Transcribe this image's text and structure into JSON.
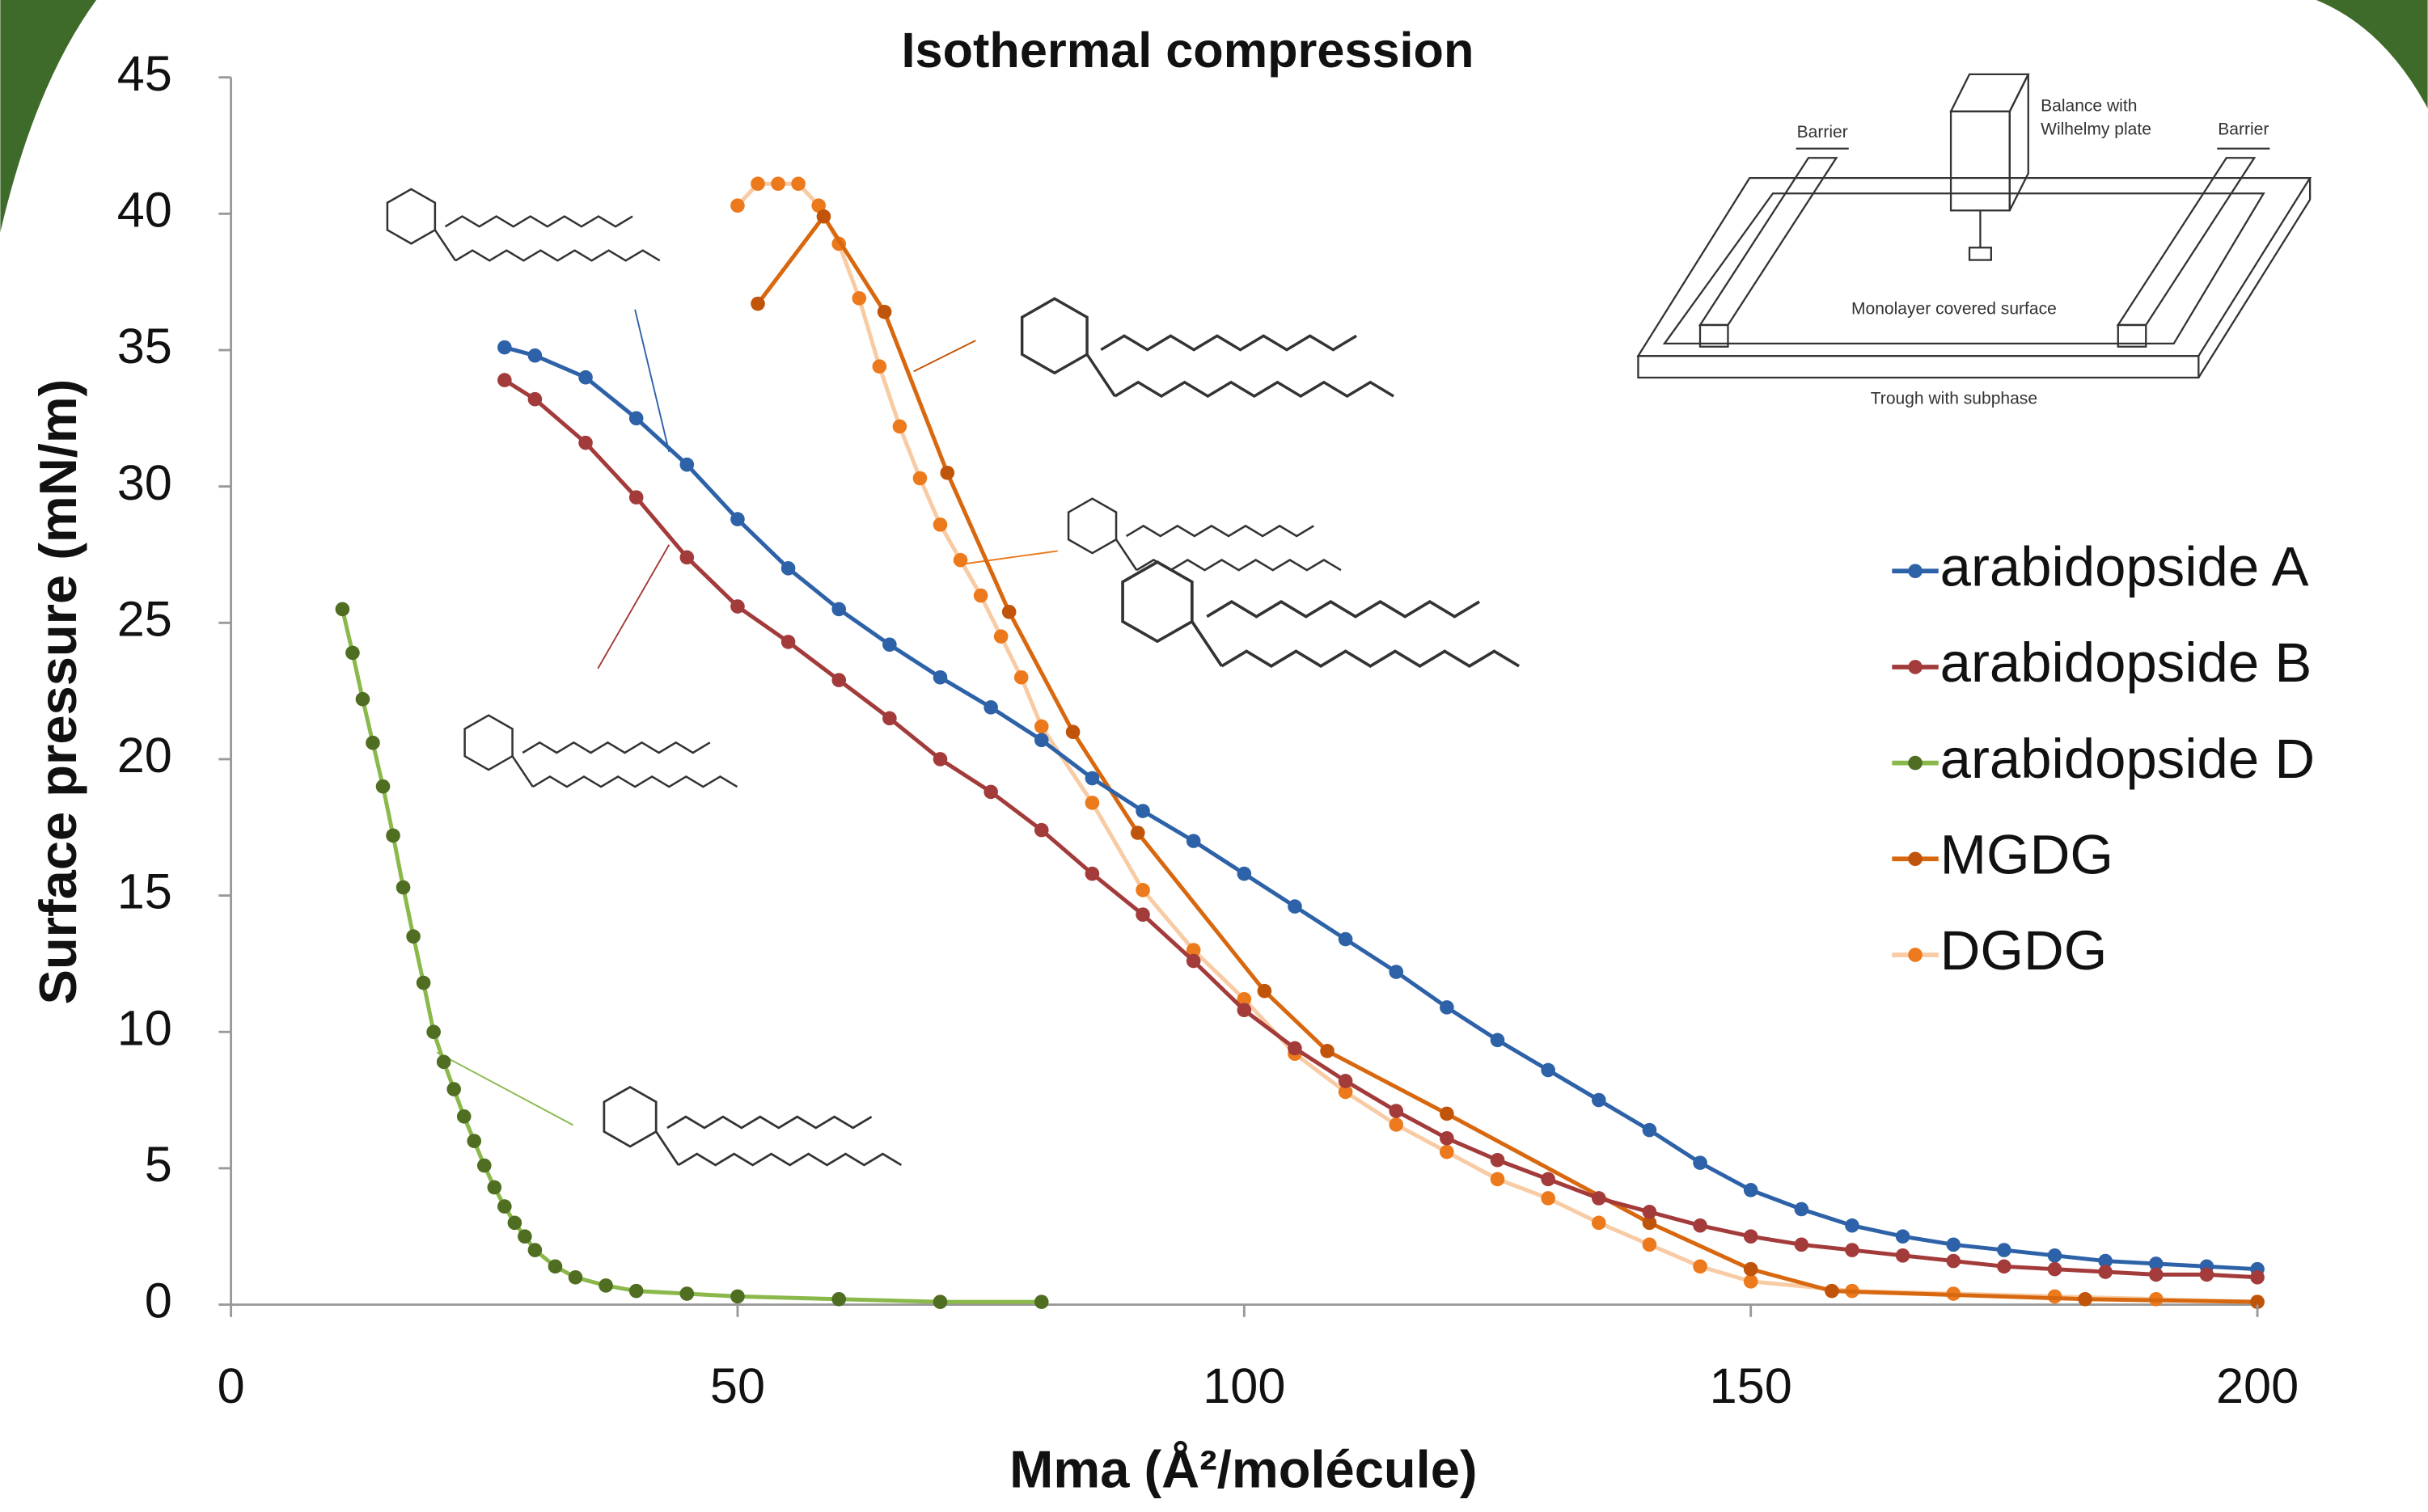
{
  "chart_data": {
    "type": "line",
    "title": "Isothermal compression",
    "x_label": "Mma (Å²/molécule)",
    "y_label": "Surface pressure (mN/m)",
    "xlim": [
      0,
      200
    ],
    "xticks": [
      0,
      50,
      100,
      150,
      200
    ],
    "ylim": [
      0,
      45
    ],
    "yticks": [
      0,
      5,
      10,
      15,
      20,
      25,
      30,
      35,
      40,
      45
    ],
    "grid": false,
    "legend": "right",
    "series": [
      {
        "name": "arabidopside A",
        "color": "#2e62a8",
        "line_color": "#2e62a8",
        "x": [
          27,
          30,
          35,
          40,
          45,
          50,
          55,
          60,
          65,
          70,
          75,
          80,
          85,
          90,
          95,
          100,
          105,
          110,
          115,
          120,
          125,
          130,
          135,
          140,
          145,
          150,
          155,
          160,
          165,
          170,
          175,
          180,
          185,
          190,
          195,
          200
        ],
        "values": [
          35.1,
          34.8,
          34.0,
          32.5,
          30.8,
          28.8,
          27.0,
          25.5,
          24.2,
          23.0,
          21.9,
          20.7,
          19.3,
          18.1,
          17.0,
          15.8,
          14.6,
          13.4,
          12.2,
          10.9,
          9.7,
          8.6,
          7.5,
          6.4,
          5.2,
          4.2,
          3.5,
          2.9,
          2.5,
          2.2,
          2.0,
          1.8,
          1.6,
          1.5,
          1.4,
          1.3
        ]
      },
      {
        "name": "arabidopside B",
        "color": "#a33b3b",
        "line_color": "#a33b3b",
        "x": [
          27,
          30,
          35,
          40,
          45,
          50,
          55,
          60,
          65,
          70,
          75,
          80,
          85,
          90,
          95,
          100,
          105,
          110,
          115,
          120,
          125,
          130,
          135,
          140,
          145,
          150,
          155,
          160,
          165,
          170,
          175,
          180,
          185,
          190,
          195,
          200
        ],
        "values": [
          33.9,
          33.2,
          31.6,
          29.6,
          27.4,
          25.6,
          24.3,
          22.9,
          21.5,
          20.0,
          18.8,
          17.4,
          15.8,
          14.3,
          12.6,
          10.8,
          9.4,
          8.2,
          7.1,
          6.1,
          5.3,
          4.6,
          3.9,
          3.4,
          2.9,
          2.5,
          2.2,
          2.0,
          1.8,
          1.6,
          1.4,
          1.3,
          1.2,
          1.1,
          1.1,
          1.0
        ]
      },
      {
        "name": "arabidopside D",
        "color": "#4f6e22",
        "line_color": "#8ab84a",
        "x": [
          11,
          12,
          13,
          14,
          15,
          16,
          17,
          18,
          19,
          20,
          21,
          22,
          23,
          24,
          25,
          26,
          27,
          28,
          29,
          30,
          32,
          34,
          37,
          40,
          45,
          50,
          60,
          70,
          80
        ],
        "values": [
          25.5,
          23.9,
          22.2,
          20.6,
          19.0,
          17.2,
          15.3,
          13.5,
          11.8,
          10.0,
          8.9,
          7.9,
          6.9,
          6.0,
          5.1,
          4.3,
          3.6,
          3.0,
          2.5,
          2.0,
          1.4,
          1.0,
          0.7,
          0.5,
          0.4,
          0.3,
          0.2,
          0.1,
          0.1
        ]
      },
      {
        "name": "MGDG",
        "color": "#c0540a",
        "line_color": "#d8680f",
        "x": [
          52,
          58.5,
          64.5,
          70.7,
          76.8,
          83.1,
          89.5,
          102,
          108.2,
          120,
          140,
          150,
          158,
          183,
          200
        ],
        "values": [
          36.7,
          39.9,
          36.4,
          30.5,
          25.4,
          21.0,
          17.3,
          11.5,
          9.3,
          7.0,
          3.0,
          1.3,
          0.5,
          0.2,
          0.1
        ]
      },
      {
        "name": "DGDG",
        "color": "#ec7a1c",
        "line_color": "#f8cba4",
        "x": [
          50,
          52,
          54,
          56,
          58,
          60,
          62,
          64,
          66,
          68,
          70,
          72,
          74,
          76,
          78,
          80,
          85,
          90,
          95,
          100,
          105,
          110,
          115,
          120,
          125,
          130,
          135,
          140,
          145,
          150,
          160,
          170,
          180,
          190,
          200
        ],
        "values": [
          40.3,
          41.1,
          41.1,
          41.1,
          40.3,
          38.9,
          36.9,
          34.4,
          32.2,
          30.3,
          28.6,
          27.3,
          26.0,
          24.5,
          23.0,
          21.2,
          18.4,
          15.2,
          13.0,
          11.2,
          9.2,
          7.8,
          6.6,
          5.6,
          4.6,
          3.9,
          3.0,
          2.2,
          1.4,
          0.85,
          0.5,
          0.4,
          0.3,
          0.2,
          0.1
        ]
      }
    ]
  },
  "inset": {
    "barrier_left": "Barrier",
    "barrier_right": "Barrier",
    "balance": [
      "Balance with",
      "Wilhelmy plate"
    ],
    "surface": "Monolayer covered surface",
    "trough": "Trough with subphase"
  }
}
